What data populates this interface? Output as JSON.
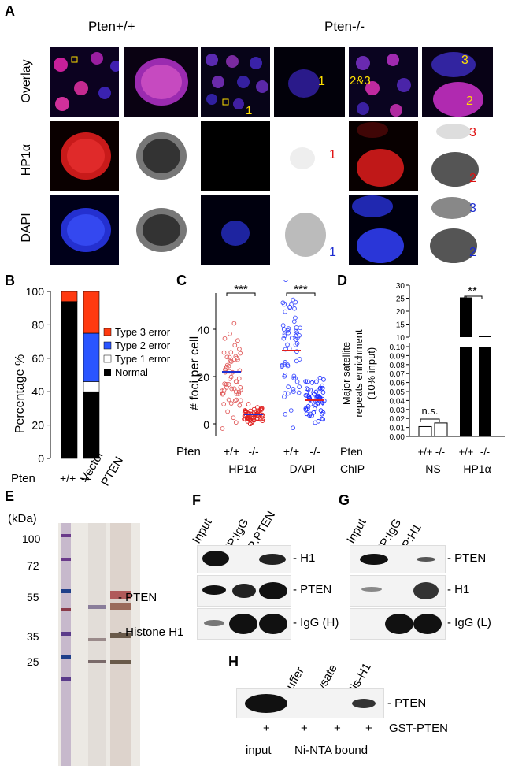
{
  "panel_A": {
    "letter": "A",
    "group_wt": "Pten+/+",
    "group_ko": "Pten-/-",
    "rows": [
      "Overlay",
      "HP1α",
      "DAPI"
    ],
    "annotations": {
      "overlay_c3": "1",
      "overlay_c4": "1",
      "overlay_c5": "2&3",
      "overlay_c6_top": "3",
      "overlay_c6_bot": "2",
      "hp1_c4": "1",
      "hp1_c6_top": "3",
      "hp1_c6_bot": "2",
      "dapi_c4": "1",
      "dapi_c6_top": "3",
      "dapi_c6_bot": "2"
    }
  },
  "panel_B": {
    "letter": "B",
    "ylabel": "Percentage %",
    "xlabel": "Pten",
    "legend": [
      "Type 3 error",
      "Type 2 error",
      "Type 1 error",
      "Normal"
    ],
    "colors": {
      "type3": "#ff3a10",
      "type2": "#2a55ff",
      "type1": "#ffffff",
      "normal": "#000000"
    },
    "chart_data": {
      "type": "bar",
      "stacked": true,
      "categories": [
        "+/+",
        "-/-"
      ],
      "series": [
        {
          "name": "Normal",
          "values": [
            94,
            40
          ]
        },
        {
          "name": "Type 1 error",
          "values": [
            0,
            6
          ]
        },
        {
          "name": "Type 2 error",
          "values": [
            0,
            29
          ]
        },
        {
          "name": "Type 3 error",
          "values": [
            6,
            25
          ]
        }
      ],
      "yticks": [
        "0",
        "20",
        "40",
        "60",
        "80",
        "100"
      ],
      "ylim": [
        0,
        100
      ]
    }
  },
  "panel_C": {
    "letter": "C",
    "ylabel": "# foci per cell",
    "yticks": [
      "0",
      "20",
      "40"
    ],
    "sig1": "***",
    "sig2": "***",
    "row_label": "Pten",
    "groups": [
      "+/+",
      "-/-",
      "+/+",
      "-/-"
    ],
    "markers": [
      "HP1α",
      "DAPI"
    ],
    "chart_data": {
      "type": "scatter",
      "series": [
        {
          "name": "HP1α +/+",
          "mean": 22
        },
        {
          "name": "HP1α -/-",
          "mean": 4
        },
        {
          "name": "DAPI +/+",
          "mean": 31
        },
        {
          "name": "DAPI -/-",
          "mean": 10
        }
      ]
    }
  },
  "panel_D": {
    "letter": "D",
    "ylabel": [
      "Major satellite",
      "repeats enrichment",
      "(10% input)"
    ],
    "yticks_top": [
      "10",
      "15",
      "20",
      "25",
      "30"
    ],
    "yticks_bottom": [
      "0.00",
      "0.01",
      "0.02",
      "0.03",
      "0.04",
      "0.05",
      "0.06",
      "0.07",
      "0.08",
      "0.09",
      "0.10"
    ],
    "sig_ns": "n.s.",
    "sig": "**",
    "row1_label": "Pten",
    "row2_label": "ChIP",
    "groups": [
      "+/+",
      "-/-",
      "+/+",
      "-/-"
    ],
    "chip": [
      "NS",
      "HP1α"
    ],
    "chart_data": {
      "type": "bar",
      "categories": [
        "NS +/+",
        "NS -/-",
        "HP1α +/+",
        "HP1α -/-"
      ],
      "values": [
        0.011,
        0.015,
        25.3,
        10.4
      ]
    }
  },
  "panel_E": {
    "letter": "E",
    "unit": "(kDa)",
    "lanes": [
      "Vector",
      "PTEN"
    ],
    "markers": [
      "100",
      "72",
      "55",
      "35",
      "25"
    ],
    "bands": [
      "- PTEN",
      "- Histone H1"
    ]
  },
  "panel_F": {
    "letter": "F",
    "lanes": [
      "Input",
      "IP:IgG",
      "IP:PTEN"
    ],
    "rows": [
      "- H1",
      "- PTEN",
      "- IgG (H)"
    ]
  },
  "panel_G": {
    "letter": "G",
    "lanes": [
      "Input",
      "IP:IgG",
      "IP:H1"
    ],
    "rows": [
      "- PTEN",
      "- H1",
      "- IgG (L)"
    ]
  },
  "panel_H": {
    "letter": "H",
    "lanes": [
      "Buffer",
      "Lysate",
      "His-H1"
    ],
    "band": "- PTEN",
    "plus": [
      "+",
      "+",
      "+",
      "+"
    ],
    "gst": "GST-PTEN",
    "input": "input",
    "bound": "Ni-NTA bound"
  }
}
